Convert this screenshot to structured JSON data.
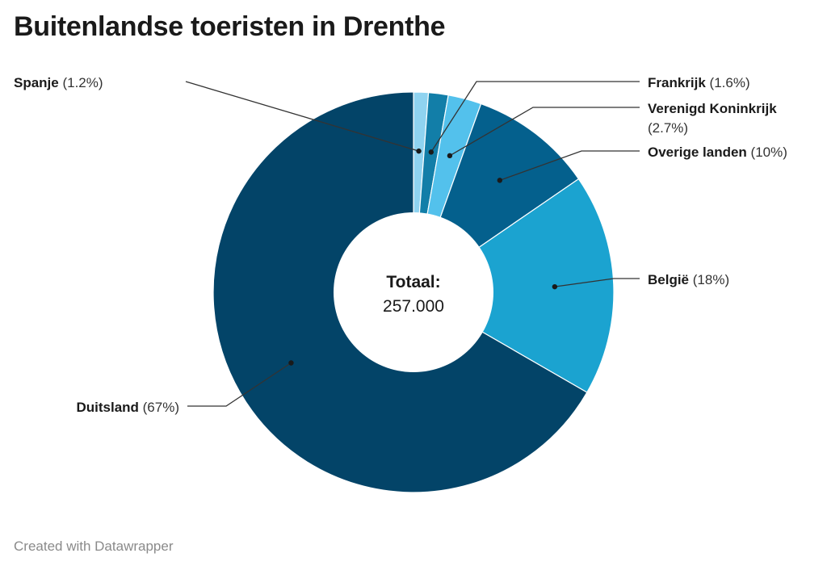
{
  "title": "Buitenlandse toeristen in Drenthe",
  "footer": "Created with Datawrapper",
  "chart_data": {
    "type": "pie",
    "variant": "donut",
    "title": "Buitenlandse toeristen in Drenthe",
    "center_label": "Totaal:",
    "center_value": "257.000",
    "slices": [
      {
        "name": "Spanje",
        "value": 1.2,
        "label": "(1.2%)",
        "color": "#8fd3f0"
      },
      {
        "name": "Frankrijk",
        "value": 1.6,
        "label": "(1.6%)",
        "color": "#127ea8"
      },
      {
        "name": "Verenigd Koninkrijk",
        "value": 2.7,
        "label": "(2.7%)",
        "color": "#53c1ec"
      },
      {
        "name": "Overige landen",
        "value": 10,
        "label": "(10%)",
        "color": "#04608d"
      },
      {
        "name": "België",
        "value": 18,
        "label": "(18%)",
        "color": "#1ba3d0"
      },
      {
        "name": "Duitsland",
        "value": 67,
        "label": "(67%)",
        "color": "#034468"
      }
    ]
  }
}
